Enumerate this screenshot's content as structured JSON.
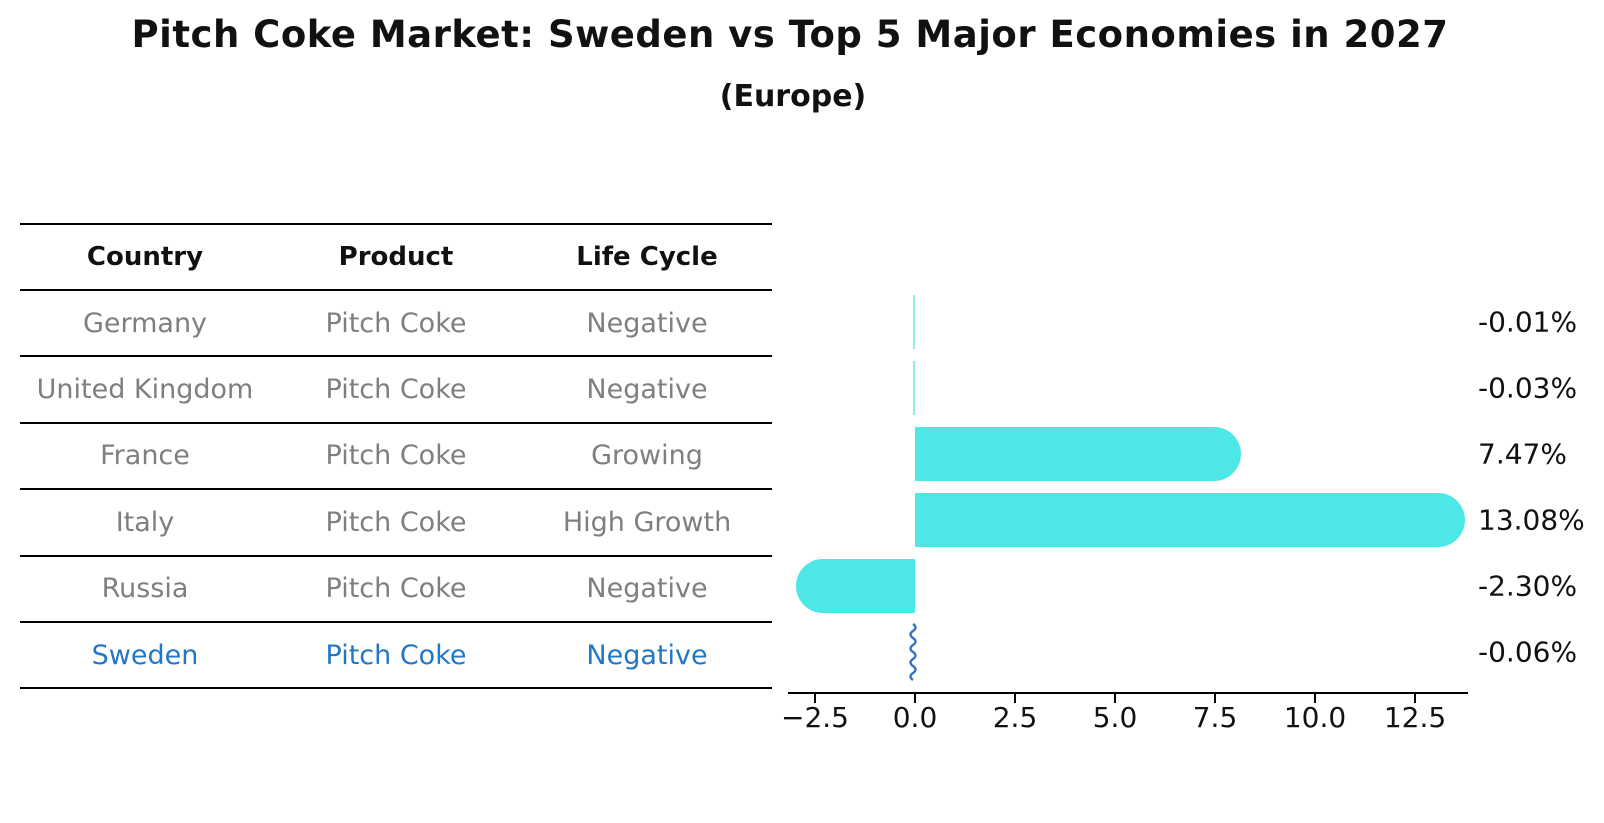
{
  "figure": {
    "title": "Pitch Coke Market: Sweden vs Top 5 Major Economies in 2027",
    "subtitle": "(Europe)"
  },
  "colors": {
    "bar": "#4de8e6",
    "thin_bar": "#8eeeea",
    "highlight_text": "#2277c8",
    "highlight_bar": "#3273c4",
    "row_text": "#7f7f7f",
    "header_text": "#111111"
  },
  "table": {
    "headers": [
      "Country",
      "Product",
      "Life Cycle"
    ],
    "rows": [
      {
        "country": "Germany",
        "product": "Pitch Coke",
        "life_cycle": "Negative",
        "highlighted": false
      },
      {
        "country": "United Kingdom",
        "product": "Pitch Coke",
        "life_cycle": "Negative",
        "highlighted": false
      },
      {
        "country": "France",
        "product": "Pitch Coke",
        "life_cycle": "Growing",
        "highlighted": false
      },
      {
        "country": "Italy",
        "product": "Pitch Coke",
        "life_cycle": "High Growth",
        "highlighted": false
      },
      {
        "country": "Russia",
        "product": "Pitch Coke",
        "life_cycle": "Negative",
        "highlighted": false
      },
      {
        "country": "Sweden",
        "product": "Pitch Coke",
        "life_cycle": "Negative",
        "highlighted": true
      }
    ]
  },
  "chart_data": {
    "type": "bar",
    "orientation": "horizontal",
    "title": "Pitch Coke Market: Sweden vs Top 5 Major Economies in 2027",
    "subtitle": "(Europe)",
    "categories": [
      "Germany",
      "United Kingdom",
      "France",
      "Italy",
      "Russia",
      "Sweden"
    ],
    "values": [
      -0.01,
      -0.03,
      7.47,
      13.08,
      -2.3,
      -0.06
    ],
    "value_labels": [
      "-0.01%",
      "-0.03%",
      "7.47%",
      "13.08%",
      "-2.30%",
      "-0.06%"
    ],
    "x_tick_values": [
      -2.5,
      0.0,
      2.5,
      5.0,
      7.5,
      10.0,
      12.5
    ],
    "x_tick_labels": [
      "−2.5",
      "0.0",
      "2.5",
      "5.0",
      "7.5",
      "10.0",
      "12.5"
    ],
    "xlim": [
      -3.2,
      13.85
    ],
    "grid": false,
    "legend": false,
    "bar_color": "#4de8e6",
    "highlight_category": "Sweden",
    "highlight_bar_color": "#3273c4"
  }
}
